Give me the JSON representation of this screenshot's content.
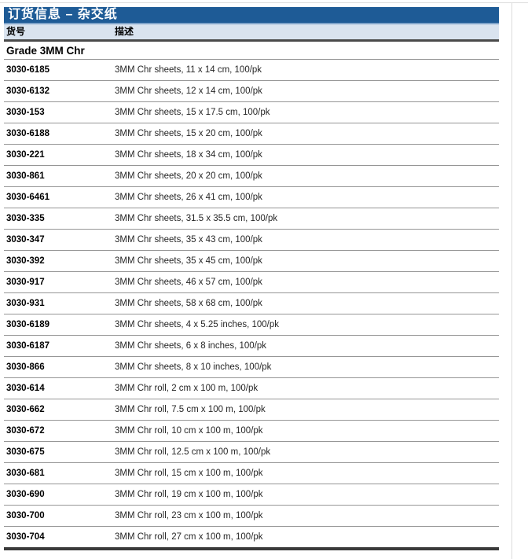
{
  "page": {
    "title": "订货信息 – 杂交纸",
    "columns": {
      "catalog": "货号",
      "description": "描述"
    },
    "section": "Grade 3MM Chr",
    "rows": [
      {
        "catalog": "3030-6185",
        "description": "3MM Chr sheets, 11 x 14 cm, 100/pk"
      },
      {
        "catalog": "3030-6132",
        "description": "3MM Chr sheets, 12 x 14 cm, 100/pk"
      },
      {
        "catalog": "3030-153",
        "description": "3MM Chr sheets, 15 x 17.5 cm, 100/pk"
      },
      {
        "catalog": "3030-6188",
        "description": "3MM Chr sheets, 15 x 20 cm, 100/pk"
      },
      {
        "catalog": "3030-221",
        "description": "3MM Chr sheets, 18 x 34 cm, 100/pk"
      },
      {
        "catalog": "3030-861",
        "description": "3MM Chr sheets, 20 x 20 cm, 100/pk"
      },
      {
        "catalog": "3030-6461",
        "description": "3MM Chr sheets, 26 x 41 cm, 100/pk"
      },
      {
        "catalog": "3030-335",
        "description": "3MM Chr sheets, 31.5 x 35.5 cm, 100/pk"
      },
      {
        "catalog": "3030-347",
        "description": "3MM Chr sheets, 35 x 43 cm, 100/pk"
      },
      {
        "catalog": "3030-392",
        "description": "3MM Chr sheets, 35 x 45 cm, 100/pk"
      },
      {
        "catalog": "3030-917",
        "description": "3MM Chr sheets, 46 x 57 cm, 100/pk"
      },
      {
        "catalog": "3030-931",
        "description": "3MM Chr sheets, 58 x 68 cm, 100/pk"
      },
      {
        "catalog": "3030-6189",
        "description": "3MM Chr sheets, 4 x 5.25 inches, 100/pk"
      },
      {
        "catalog": "3030-6187",
        "description": "3MM Chr sheets, 6 x 8 inches, 100/pk"
      },
      {
        "catalog": "3030-866",
        "description": "3MM Chr sheets, 8 x 10 inches, 100/pk"
      },
      {
        "catalog": "3030-614",
        "description": "3MM Chr roll, 2 cm x 100 m, 100/pk"
      },
      {
        "catalog": "3030-662",
        "description": "3MM Chr roll, 7.5 cm x 100 m, 100/pk"
      },
      {
        "catalog": "3030-672",
        "description": "3MM Chr roll, 10 cm x 100 m, 100/pk"
      },
      {
        "catalog": "3030-675",
        "description": "3MM Chr roll, 12.5 cm x 100 m, 100/pk"
      },
      {
        "catalog": "3030-681",
        "description": "3MM Chr roll, 15 cm x 100 m, 100/pk"
      },
      {
        "catalog": "3030-690",
        "description": "3MM Chr roll, 19 cm x 100 m, 100/pk"
      },
      {
        "catalog": "3030-700",
        "description": "3MM Chr roll, 23 cm x 100 m, 100/pk"
      },
      {
        "catalog": "3030-704",
        "description": "3MM Chr roll, 27 cm x 100 m, 100/pk"
      }
    ],
    "colors": {
      "banner_bg": "#1e5b96",
      "banner_edge": "#7ea3c9",
      "header_bg": "#d9e3ef",
      "header_rule": "#4a4a4a",
      "row_rule": "#969696",
      "bottom_rule": "#3a3a3a"
    }
  }
}
